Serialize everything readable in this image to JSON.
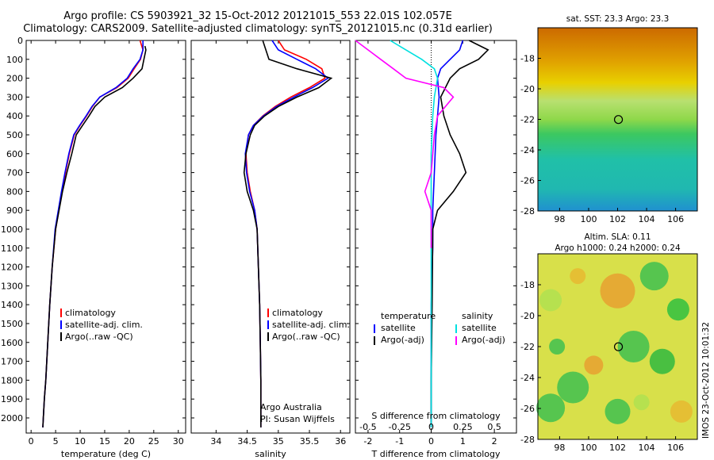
{
  "title": {
    "line1": "Argo profile: CS 5903921_32 15-Oct-2012 20121015_553 22.01S 102.057E",
    "line2": "Climatology: CARS2009. Satellite-adjusted climatology: synTS_20121015.nc (0.31d earlier)"
  },
  "chart_data": [
    {
      "type": "line",
      "xlabel": "temperature (deg C)",
      "ylabel": "",
      "xlim": [
        -1,
        31.5
      ],
      "ylim": [
        0,
        2080
      ],
      "xticks": [
        0,
        5,
        10,
        15,
        20,
        25,
        30
      ],
      "yticks": [
        0,
        100,
        200,
        300,
        400,
        500,
        600,
        700,
        800,
        900,
        1000,
        1100,
        1200,
        1300,
        1400,
        1500,
        1600,
        1700,
        1800,
        1900,
        2000
      ],
      "legend": [
        "climatology",
        "satellite-adj. clim.",
        "Argo(..raw -QC)"
      ],
      "series": [
        {
          "name": "climatology",
          "color": "#ff0000",
          "x": [
            22.2,
            22.8,
            22.3,
            21.0,
            19.8,
            17.5,
            14.0,
            12.5,
            11.3,
            10.0,
            8.8,
            7.8,
            7.0,
            6.3,
            5.0,
            4.3,
            3.8,
            3.4,
            3.0,
            2.7,
            2.5,
            2.4
          ],
          "y": [
            0,
            50,
            100,
            150,
            200,
            250,
            300,
            350,
            400,
            450,
            500,
            600,
            700,
            800,
            1000,
            1200,
            1400,
            1600,
            1800,
            1900,
            2000,
            2050
          ]
        },
        {
          "name": "satellite-adj. clim.",
          "color": "#0000ff",
          "x": [
            22.8,
            22.8,
            22.2,
            20.8,
            19.6,
            17.3,
            14.0,
            12.4,
            11.2,
            9.9,
            8.7,
            7.7,
            6.9,
            6.2,
            4.9,
            4.3,
            3.8,
            3.4,
            3.0,
            2.7,
            2.5,
            2.4
          ],
          "y": [
            0,
            50,
            100,
            150,
            200,
            250,
            300,
            350,
            400,
            450,
            500,
            600,
            700,
            800,
            1000,
            1200,
            1400,
            1600,
            1800,
            1900,
            2000,
            2050
          ]
        },
        {
          "name": "Argo(..raw -QC)",
          "color": "#000000",
          "x": [
            23.2,
            23.4,
            23.0,
            22.6,
            20.8,
            18.6,
            15.0,
            13.0,
            11.8,
            10.5,
            9.2,
            8.3,
            7.3,
            6.4,
            5.0,
            4.3,
            3.8,
            3.4,
            3.0,
            2.7,
            2.5,
            2.4
          ],
          "y": [
            30,
            50,
            100,
            150,
            200,
            250,
            300,
            350,
            400,
            450,
            500,
            600,
            700,
            800,
            1000,
            1200,
            1400,
            1600,
            1800,
            1900,
            2000,
            2050
          ]
        }
      ]
    },
    {
      "type": "line",
      "xlabel": "salinity",
      "xlim": [
        33.6,
        36.15
      ],
      "ylim": [
        0,
        2080
      ],
      "xticks": [
        34,
        34.5,
        35,
        35.5,
        36
      ],
      "legend": [
        "climatology",
        "satellite-adj. clim.",
        "Argo(..raw -QC)"
      ],
      "annotation": [
        "Argo Australia",
        "PI: Susan Wijffels"
      ],
      "series": [
        {
          "name": "climatology",
          "color": "#ff0000",
          "x": [
            35.0,
            35.1,
            35.45,
            35.7,
            35.75,
            35.5,
            35.2,
            34.95,
            34.75,
            34.6,
            34.52,
            34.48,
            34.5,
            34.55,
            34.62,
            34.66,
            34.68,
            34.7,
            34.71,
            34.72,
            34.72
          ],
          "y": [
            0,
            50,
            100,
            150,
            200,
            250,
            300,
            350,
            400,
            450,
            500,
            600,
            700,
            800,
            900,
            1000,
            1200,
            1400,
            1600,
            1800,
            2050
          ]
        },
        {
          "name": "satellite-adj. clim.",
          "color": "#0000ff",
          "x": [
            34.9,
            35.0,
            35.3,
            35.6,
            35.8,
            35.55,
            35.25,
            34.97,
            34.76,
            34.6,
            34.52,
            34.47,
            34.49,
            34.54,
            34.62,
            34.66,
            34.68,
            34.7,
            34.71,
            34.72,
            34.72
          ],
          "y": [
            0,
            50,
            100,
            150,
            200,
            250,
            300,
            350,
            400,
            450,
            500,
            600,
            700,
            800,
            900,
            1000,
            1200,
            1400,
            1600,
            1800,
            2050
          ]
        },
        {
          "name": "Argo(..raw -QC)",
          "color": "#000000",
          "x": [
            34.75,
            34.8,
            34.85,
            35.3,
            35.85,
            35.65,
            35.3,
            35.0,
            34.78,
            34.62,
            34.55,
            34.48,
            34.45,
            34.5,
            34.6,
            34.66,
            34.68,
            34.7,
            34.71,
            34.72,
            34.72
          ],
          "y": [
            0,
            50,
            100,
            150,
            200,
            250,
            300,
            350,
            400,
            450,
            500,
            600,
            700,
            800,
            900,
            1000,
            1200,
            1400,
            1600,
            1800,
            2050
          ]
        }
      ]
    },
    {
      "type": "line",
      "xlabel": "T difference from climatology",
      "xlabel_top": "S difference from climatology",
      "xlim": [
        -2.4,
        2.7
      ],
      "ylim": [
        0,
        2080
      ],
      "xticks": [
        -2,
        -1,
        0,
        1,
        2
      ],
      "xticks_top": [
        "-0.5",
        "-0.25",
        "0",
        "0.25",
        "0.5"
      ],
      "legend_left": {
        "title": "temperature",
        "items": [
          "satellite",
          "Argo(-adj)"
        ]
      },
      "legend_right": {
        "title": "salinity",
        "items": [
          "satellite",
          "Argo(-adj)"
        ]
      },
      "series": [
        {
          "name": "T satellite",
          "color": "#0000ff",
          "x": [
            1.0,
            0.9,
            0.6,
            0.3,
            0.2,
            0.25,
            0.2,
            0.15,
            0.1,
            0.05,
            0.05,
            0.0,
            0.0,
            0.0
          ],
          "y": [
            0,
            50,
            100,
            150,
            200,
            300,
            400,
            500,
            700,
            900,
            1100,
            1400,
            1800,
            2050
          ]
        },
        {
          "name": "T Argo(-adj)",
          "color": "#000000",
          "x": [
            1.2,
            1.8,
            1.5,
            0.9,
            0.6,
            0.3,
            0.4,
            0.6,
            0.9,
            1.1,
            0.7,
            0.2,
            0.05,
            0.03,
            0.0,
            0.0
          ],
          "y": [
            0,
            50,
            100,
            150,
            200,
            300,
            400,
            500,
            600,
            700,
            800,
            900,
            1000,
            1400,
            1800,
            2050
          ]
        },
        {
          "name": "S satellite",
          "color": "#00e0e0",
          "x": [
            -1.3,
            -0.8,
            -0.3,
            0.1,
            0.2,
            0.1,
            0.05,
            0.0,
            0.0,
            0.0,
            0.0
          ],
          "y": [
            0,
            50,
            100,
            150,
            200,
            300,
            400,
            600,
            900,
            1400,
            2050
          ]
        },
        {
          "name": "S Argo(-adj)",
          "color": "#ff00ff",
          "x": [
            -2.4,
            -2.0,
            -1.6,
            -1.2,
            -0.8,
            0.4,
            0.7,
            0.2,
            0.1,
            0.0,
            -0.2,
            0.0,
            0.0
          ],
          "y": [
            0,
            50,
            100,
            150,
            200,
            250,
            300,
            400,
            500,
            700,
            800,
            900,
            1100
          ]
        }
      ]
    },
    {
      "type": "heatmap",
      "title": "sat. SST: 23.3 Argo: 23.3",
      "xlim": [
        96.5,
        107.5
      ],
      "ylim": [
        -28,
        -16
      ],
      "xticks": [
        98,
        100,
        102,
        104,
        106
      ],
      "yticks": [
        -18,
        -20,
        -22,
        -24,
        -26,
        -28
      ],
      "marker": {
        "x": 102.057,
        "y": -22.01
      }
    },
    {
      "type": "heatmap",
      "title": "Altim. SLA: 0.11",
      "subtitle": "Argo h1000: 0.24 h2000: 0.24",
      "xlim": [
        96.5,
        107.5
      ],
      "ylim": [
        -28,
        -16
      ],
      "xticks": [
        98,
        100,
        102,
        104,
        106
      ],
      "yticks": [
        -18,
        -20,
        -22,
        -24,
        -26,
        -28
      ],
      "marker": {
        "x": 102.057,
        "y": -22.01
      }
    }
  ],
  "stamp": "IMOS 23-Oct-2012 10:01:32"
}
